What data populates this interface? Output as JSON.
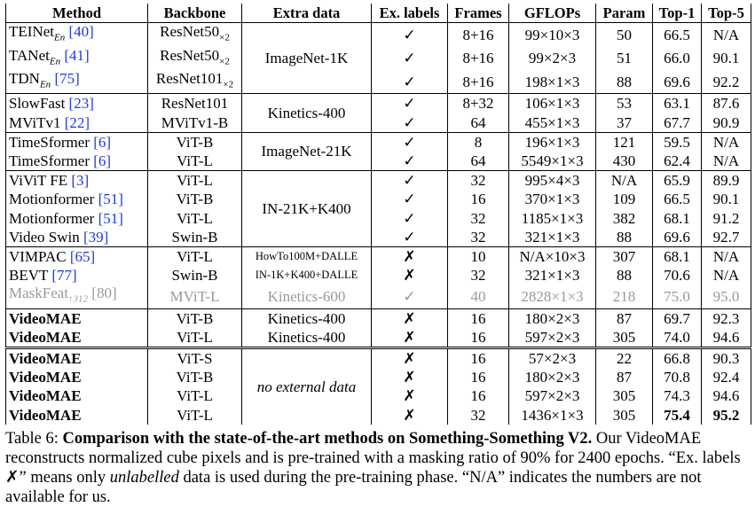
{
  "table": {
    "header": [
      "Method",
      "Backbone",
      "Extra data",
      "Ex. labels",
      "Frames",
      "GFLOPs",
      "Param",
      "Top-1",
      "Top-5"
    ],
    "groups": [
      {
        "extra_data": "ImageNet-1K",
        "rows": [
          {
            "method": "TEINet",
            "method_sub": "En",
            "cite": "[40]",
            "backbone": "ResNet50",
            "backbone_sub": "×2",
            "ex_label": "✓",
            "frames": "8+16",
            "gflops": "99×10×3",
            "param": "50",
            "top1": "66.5",
            "top5": "N/A"
          },
          {
            "method": "TANet",
            "method_sub": "En",
            "cite": "[41]",
            "backbone": "ResNet50",
            "backbone_sub": "×2",
            "ex_label": "✓",
            "frames": "8+16",
            "gflops": "99×2×3",
            "param": "51",
            "top1": "66.0",
            "top5": "90.1"
          },
          {
            "method": "TDN",
            "method_sub": "En",
            "cite": "[75]",
            "backbone": "ResNet101",
            "backbone_sub": "×2",
            "ex_label": "✓",
            "frames": "8+16",
            "gflops": "198×1×3",
            "param": "88",
            "top1": "69.6",
            "top5": "92.2"
          }
        ]
      },
      {
        "extra_data": "Kinetics-400",
        "rows": [
          {
            "method": "SlowFast",
            "cite": "[23]",
            "backbone": "ResNet101",
            "ex_label": "✓",
            "frames": "8+32",
            "gflops": "106×1×3",
            "param": "53",
            "top1": "63.1",
            "top5": "87.6"
          },
          {
            "method": "MViTv1",
            "cite": "[22]",
            "backbone": "MViTv1-B",
            "ex_label": "✓",
            "frames": "64",
            "gflops": "455×1×3",
            "param": "37",
            "top1": "67.7",
            "top5": "90.9"
          }
        ]
      },
      {
        "extra_data": "ImageNet-21K",
        "rows": [
          {
            "method": "TimeSformer",
            "cite": "[6]",
            "backbone": "ViT-B",
            "ex_label": "✓",
            "frames": "8",
            "gflops": "196×1×3",
            "param": "121",
            "top1": "59.5",
            "top5": "N/A"
          },
          {
            "method": "TimeSformer",
            "cite": "[6]",
            "backbone": "ViT-L",
            "ex_label": "✓",
            "frames": "64",
            "gflops": "5549×1×3",
            "param": "430",
            "top1": "62.4",
            "top5": "N/A"
          }
        ]
      },
      {
        "extra_data": "IN-21K+K400",
        "rows": [
          {
            "method": "ViViT FE",
            "cite": "[3]",
            "backbone": "ViT-L",
            "ex_label": "✓",
            "frames": "32",
            "gflops": "995×4×3",
            "param": "N/A",
            "top1": "65.9",
            "top5": "89.9"
          },
          {
            "method": "Motionformer",
            "cite": "[51]",
            "backbone": "ViT-B",
            "ex_label": "✓",
            "frames": "16",
            "gflops": "370×1×3",
            "param": "109",
            "top1": "66.5",
            "top5": "90.1"
          },
          {
            "method": "Motionformer",
            "cite": "[51]",
            "backbone": "ViT-L",
            "ex_label": "✓",
            "frames": "32",
            "gflops": "1185×1×3",
            "param": "382",
            "top1": "68.1",
            "top5": "91.2"
          },
          {
            "method": "Video Swin",
            "cite": "[39]",
            "backbone": "Swin-B",
            "ex_label": "✓",
            "frames": "32",
            "gflops": "321×1×3",
            "param": "88",
            "top1": "69.6",
            "top5": "92.7"
          }
        ]
      },
      {
        "rows": [
          {
            "method": "VIMPAC",
            "cite": "[65]",
            "backbone": "ViT-L",
            "extra_data": "HowTo100M+DALLE",
            "ex_label": "✗",
            "frames": "10",
            "gflops": "N/A×10×3",
            "param": "307",
            "top1": "68.1",
            "top5": "N/A"
          },
          {
            "method": "BEVT",
            "cite": "[77]",
            "backbone": "Swin-B",
            "extra_data": "IN-1K+K400+DALLE",
            "ex_label": "✗",
            "frames": "32",
            "gflops": "321×1×3",
            "param": "88",
            "top1": "70.6",
            "top5": "N/A"
          },
          {
            "method": "MaskFeat",
            "method_sub": "↑312",
            "cite": "[80]",
            "backbone": "MViT-L",
            "extra_data": "Kinetics-600",
            "ex_label": "✓",
            "frames": "40",
            "gflops": "2828×1×3",
            "param": "218",
            "top1": "75.0",
            "top5": "95.0"
          }
        ]
      },
      {
        "rows": [
          {
            "method": "VideoMAE",
            "backbone": "ViT-B",
            "extra_data": "Kinetics-400",
            "ex_label": "✗",
            "frames": "16",
            "gflops": "180×2×3",
            "param": "87",
            "top1": "69.7",
            "top5": "92.3"
          },
          {
            "method": "VideoMAE",
            "backbone": "ViT-L",
            "extra_data": "Kinetics-400",
            "ex_label": "✗",
            "frames": "16",
            "gflops": "597×2×3",
            "param": "305",
            "top1": "74.0",
            "top5": "94.6"
          }
        ]
      },
      {
        "extra_data": "no external data",
        "rows": [
          {
            "method": "VideoMAE",
            "backbone": "ViT-S",
            "ex_label": "✗",
            "frames": "16",
            "gflops": "57×2×3",
            "param": "22",
            "top1": "66.8",
            "top5": "90.3"
          },
          {
            "method": "VideoMAE",
            "backbone": "ViT-B",
            "ex_label": "✗",
            "frames": "16",
            "gflops": "180×2×3",
            "param": "87",
            "top1": "70.8",
            "top5": "92.4"
          },
          {
            "method": "VideoMAE",
            "backbone": "ViT-L",
            "ex_label": "✗",
            "frames": "16",
            "gflops": "597×2×3",
            "param": "305",
            "top1": "74.3",
            "top5": "94.6"
          },
          {
            "method": "VideoMAE",
            "backbone": "ViT-L",
            "ex_label": "✗",
            "frames": "32",
            "gflops": "1436×1×3",
            "param": "305",
            "top1": "75.4",
            "top5": "95.2"
          }
        ]
      }
    ]
  },
  "caption": {
    "label": "Table 6:",
    "title": "Comparison with the state-of-the-art methods on Something-Something V2.",
    "text_before": "Our VideoMAE reconstructs normalized cube pixels and is pre-trained with a masking ratio of 90% for 2400 epochs. “Ex. labels ✗” means only",
    "emphasis": "unlabelled",
    "text_after": "data is used during the pre-training phase. “N/A” indicates the numbers are not available for us."
  }
}
